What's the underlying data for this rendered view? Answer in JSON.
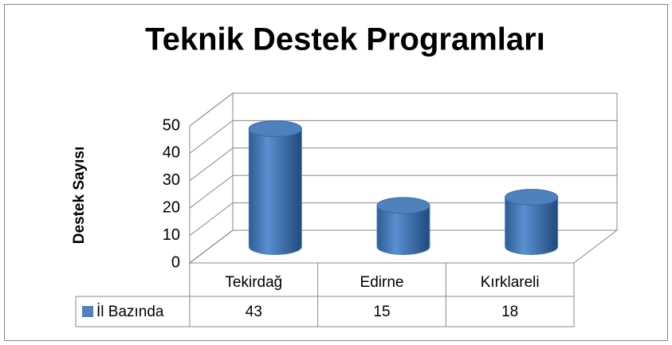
{
  "chart_data": {
    "type": "bar3d",
    "title": "Teknik Destek Programları",
    "ylabel": "Destek Sayısı",
    "categories": [
      "Tekirdağ",
      "Edirne",
      "Kırklareli"
    ],
    "series": [
      {
        "name": "İl Bazında",
        "color": "#4f81bd",
        "values": [
          43,
          15,
          18
        ]
      }
    ],
    "ylim": [
      0,
      50
    ],
    "yticks": [
      0,
      10,
      20,
      30,
      40,
      50
    ],
    "grid": true
  }
}
